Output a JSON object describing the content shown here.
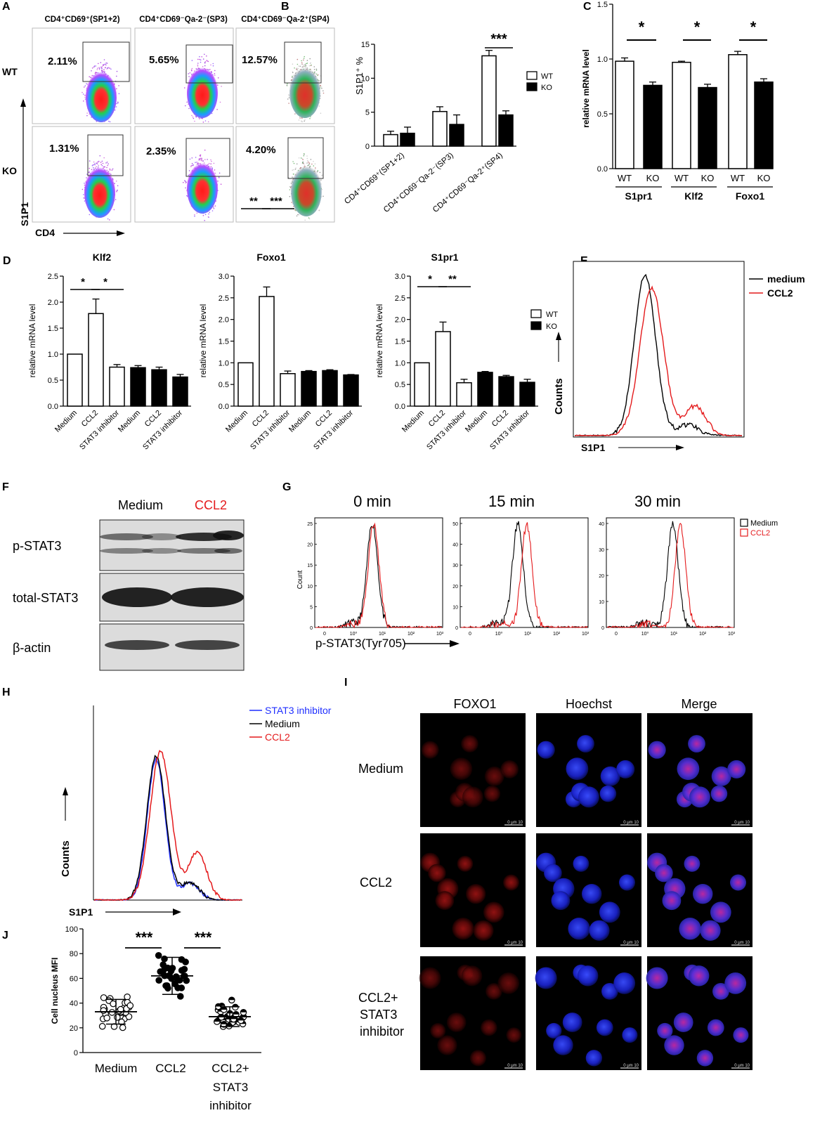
{
  "panel_letters": [
    "A",
    "B",
    "C",
    "D",
    "E",
    "F",
    "G",
    "H",
    "I",
    "J"
  ],
  "panel_a": {
    "column_titles": [
      "CD4⁺CD69⁺(SP1+2)",
      "CD4⁺CD69⁻Qa-2⁻(SP3)",
      "CD4⁺CD69⁻Qa-2⁺(SP4)"
    ],
    "row_labels": [
      "WT",
      "KO"
    ],
    "y_axis": "S1P1",
    "x_axis": "CD4",
    "gate_percents": [
      [
        "2.11%",
        "5.65%",
        "12.57%"
      ],
      [
        "1.31%",
        "2.35%",
        "4.20%"
      ]
    ]
  },
  "panel_b": {
    "ylabel": "S1P1⁺ %",
    "significance": "***",
    "legend": [
      "WT",
      "KO"
    ],
    "chart_data": {
      "type": "bar",
      "categories": [
        "CD4⁺CD69⁺(SP1+2)",
        "CD4⁺CD69⁻Qa-2⁻(SP3)",
        "CD4⁺CD69⁻Qa-2⁺(SP4)"
      ],
      "series": [
        {
          "name": "WT",
          "values": [
            1.7,
            5.1,
            13.3
          ],
          "errors": [
            0.5,
            0.7,
            0.8
          ],
          "color": "#ffffff"
        },
        {
          "name": "KO",
          "values": [
            1.9,
            3.2,
            4.6
          ],
          "errors": [
            0.9,
            1.4,
            0.6
          ],
          "color": "#000000"
        }
      ],
      "ylim": [
        0,
        15
      ],
      "yticks": [
        0,
        5,
        10,
        15
      ]
    }
  },
  "panel_c": {
    "ylabel": "relative mRNA level",
    "sig": [
      "*",
      "*",
      "*"
    ],
    "groups": [
      "S1pr1",
      "Klf2",
      "Foxo1"
    ],
    "chart_data": {
      "type": "bar",
      "categories": [
        "WT",
        "KO",
        "WT",
        "KO",
        "WT",
        "KO"
      ],
      "values": [
        0.98,
        0.76,
        0.97,
        0.74,
        1.04,
        0.79
      ],
      "errors": [
        0.03,
        0.03,
        0.01,
        0.03,
        0.03,
        0.03
      ],
      "ylim": [
        0,
        1.5
      ],
      "yticks": [
        "0.0",
        "0.5",
        "1.0",
        "1.5"
      ]
    }
  },
  "panel_d": {
    "ylabel": "relative mRNA level",
    "legend": [
      "WT",
      "KO"
    ],
    "xcats": [
      "Medium",
      "CCL2",
      "STAT3 inhibitor",
      "Medium",
      "CCL2",
      "STAT3 inhibitor"
    ],
    "chart_data": [
      {
        "type": "bar",
        "title": "Klf2",
        "values": [
          1.0,
          1.78,
          0.75,
          0.74,
          0.7,
          0.56
        ],
        "errors": [
          0,
          0.28,
          0.05,
          0.04,
          0.05,
          0.05
        ],
        "ylim": [
          0,
          2.5
        ],
        "yticks": [
          "0.0",
          "0.5",
          "1.0",
          "1.5",
          "2.0",
          "2.5"
        ],
        "sig": [
          "*",
          "*"
        ]
      },
      {
        "type": "bar",
        "title": "Foxo1",
        "values": [
          1.0,
          2.53,
          0.75,
          0.8,
          0.82,
          0.72
        ],
        "errors": [
          0,
          0.22,
          0.06,
          0.02,
          0.02,
          0.01
        ],
        "ylim": [
          0,
          3.0
        ],
        "yticks": [
          "0.0",
          "0.5",
          "1.0",
          "1.5",
          "2.0",
          "2.5",
          "3.0"
        ],
        "sig": [
          "**",
          "***"
        ]
      },
      {
        "type": "bar",
        "title": "S1pr1",
        "values": [
          1.0,
          1.72,
          0.54,
          0.78,
          0.68,
          0.55
        ],
        "errors": [
          0,
          0.22,
          0.08,
          0.02,
          0.03,
          0.07
        ],
        "ylim": [
          0,
          3.0
        ],
        "yticks": [
          "0.0",
          "0.5",
          "1.0",
          "1.5",
          "2.0",
          "2.5",
          "3.0"
        ],
        "sig": [
          "*",
          "**"
        ]
      }
    ]
  },
  "panel_e": {
    "ylabel": "Counts",
    "xlabel": "S1P1",
    "legend": [
      {
        "name": "medium",
        "color": "#000000"
      },
      {
        "name": "CCL2",
        "color": "#e41a1c"
      }
    ]
  },
  "panel_f": {
    "lane_labels": [
      "Medium",
      "CCL2"
    ],
    "lane_colors": [
      "#000000",
      "#e41a1c"
    ],
    "rows": [
      "p-STAT3",
      "total-STAT3",
      "β-actin"
    ]
  },
  "panel_g": {
    "time_labels": [
      "0 min",
      "15 min",
      "30 min"
    ],
    "ylabel": "Count",
    "xlabel": "p-STAT3(Tyr705)",
    "yticks": [
      [
        "0",
        "5",
        "10",
        "15",
        "20",
        "25"
      ],
      [
        "0",
        "10",
        "20",
        "30",
        "40",
        "50"
      ],
      [
        "0",
        "10",
        "20",
        "30",
        "40"
      ]
    ],
    "xticks": [
      "0",
      "10⁰",
      "10¹",
      "10²",
      "10³"
    ],
    "legend": [
      {
        "name": "Medium",
        "color": "#000000"
      },
      {
        "name": "CCL2",
        "color": "#e41a1c"
      }
    ]
  },
  "panel_h": {
    "ylabel": "Counts",
    "xlabel": "S1P1",
    "legend": [
      {
        "name": "STAT3 inhibitor",
        "color": "#1f2fff"
      },
      {
        "name": "Medium",
        "color": "#000000"
      },
      {
        "name": "CCL2",
        "color": "#e41a1c"
      }
    ]
  },
  "panel_i": {
    "col_titles": [
      "FOXO1",
      "Hoechst",
      "Merge"
    ],
    "row_labels": [
      "Medium",
      "CCL2",
      "CCL2+",
      "STAT3",
      "inhibitor"
    ],
    "scale_text": "0   μm  10"
  },
  "panel_j": {
    "ylabel": "Cell nucleus MFI",
    "sig": [
      "***",
      "***"
    ],
    "x_labels": [
      "Medium",
      "CCL2",
      "CCL2+",
      "STAT3",
      "inhibitor"
    ],
    "chart_data": {
      "type": "scatter",
      "categories": [
        "Medium",
        "CCL2",
        "CCL2+STAT3 inhibitor"
      ],
      "means": [
        33,
        62,
        29
      ],
      "sd": [
        10,
        15,
        8
      ],
      "ylim": [
        0,
        100
      ],
      "yticks": [
        "0",
        "20",
        "40",
        "60",
        "80",
        "100"
      ]
    }
  }
}
